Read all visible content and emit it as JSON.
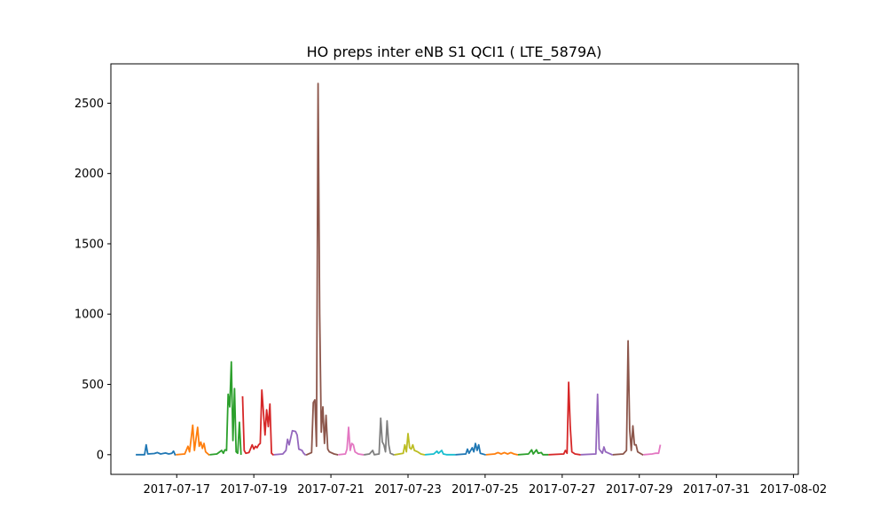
{
  "chart_data": {
    "type": "line",
    "title": "HO preps inter eNB S1 QCI1 ( LTE_5879A)",
    "xlabel": "",
    "ylabel": "",
    "x_ticks": [
      "2017-07-17",
      "2017-07-19",
      "2017-07-21",
      "2017-07-23",
      "2017-07-25",
      "2017-07-27",
      "2017-07-29",
      "2017-07-31",
      "2017-08-02"
    ],
    "y_ticks": [
      0,
      500,
      1000,
      1500,
      2000,
      2500
    ],
    "xlim": [
      "2017-07-15T07:00",
      "2017-08-02T03:00"
    ],
    "ylim": [
      -140,
      2780
    ],
    "grid": false,
    "legend": "none",
    "series": [
      {
        "color": "#1f77b4",
        "points": [
          [
            "2017-07-15T23:00",
            0
          ],
          [
            "2017-07-16T04:00",
            0
          ],
          [
            "2017-07-16T05:00",
            70
          ],
          [
            "2017-07-16T06:00",
            5
          ],
          [
            "2017-07-16T10:00",
            8
          ],
          [
            "2017-07-16T12:00",
            15
          ],
          [
            "2017-07-16T14:00",
            5
          ],
          [
            "2017-07-16T17:00",
            12
          ],
          [
            "2017-07-16T19:00",
            5
          ],
          [
            "2017-07-16T21:00",
            10
          ],
          [
            "2017-07-16T22:00",
            25
          ],
          [
            "2017-07-16T23:00",
            0
          ]
        ]
      },
      {
        "color": "#ff7f0e",
        "points": [
          [
            "2017-07-17T00:00",
            0
          ],
          [
            "2017-07-17T05:00",
            5
          ],
          [
            "2017-07-17T07:00",
            60
          ],
          [
            "2017-07-17T08:00",
            20
          ],
          [
            "2017-07-17T10:00",
            210
          ],
          [
            "2017-07-17T11:00",
            30
          ],
          [
            "2017-07-17T13:00",
            195
          ],
          [
            "2017-07-17T14:00",
            60
          ],
          [
            "2017-07-17T15:00",
            90
          ],
          [
            "2017-07-17T16:00",
            45
          ],
          [
            "2017-07-17T17:00",
            80
          ],
          [
            "2017-07-17T18:00",
            20
          ],
          [
            "2017-07-17T19:00",
            10
          ],
          [
            "2017-07-17T20:00",
            0
          ]
        ]
      },
      {
        "color": "#2ca02c",
        "points": [
          [
            "2017-07-17T21:00",
            0
          ],
          [
            "2017-07-18T01:00",
            5
          ],
          [
            "2017-07-18T04:00",
            30
          ],
          [
            "2017-07-18T05:00",
            10
          ],
          [
            "2017-07-18T06:00",
            35
          ],
          [
            "2017-07-18T07:00",
            30
          ],
          [
            "2017-07-18T08:00",
            430
          ],
          [
            "2017-07-18T09:00",
            340
          ],
          [
            "2017-07-18T10:00",
            660
          ],
          [
            "2017-07-18T11:00",
            100
          ],
          [
            "2017-07-18T12:00",
            470
          ],
          [
            "2017-07-18T13:00",
            20
          ],
          [
            "2017-07-18T14:00",
            10
          ],
          [
            "2017-07-18T15:00",
            230
          ],
          [
            "2017-07-18T16:00",
            5
          ]
        ]
      },
      {
        "color": "#d62728",
        "points": [
          [
            "2017-07-18T17:00",
            410
          ],
          [
            "2017-07-18T18:00",
            30
          ],
          [
            "2017-07-18T19:00",
            10
          ],
          [
            "2017-07-18T21:00",
            15
          ],
          [
            "2017-07-18T23:00",
            70
          ],
          [
            "2017-07-19T00:00",
            40
          ],
          [
            "2017-07-19T01:00",
            60
          ],
          [
            "2017-07-19T02:00",
            50
          ],
          [
            "2017-07-19T03:00",
            70
          ],
          [
            "2017-07-19T04:00",
            80
          ],
          [
            "2017-07-19T05:00",
            460
          ],
          [
            "2017-07-19T06:00",
            300
          ],
          [
            "2017-07-19T07:00",
            140
          ],
          [
            "2017-07-19T08:00",
            320
          ],
          [
            "2017-07-19T09:00",
            200
          ],
          [
            "2017-07-19T10:00",
            360
          ],
          [
            "2017-07-19T11:00",
            10
          ],
          [
            "2017-07-19T12:00",
            0
          ]
        ]
      },
      {
        "color": "#9467bd",
        "points": [
          [
            "2017-07-19T13:00",
            0
          ],
          [
            "2017-07-19T18:00",
            5
          ],
          [
            "2017-07-19T20:00",
            30
          ],
          [
            "2017-07-19T21:00",
            110
          ],
          [
            "2017-07-19T22:00",
            70
          ],
          [
            "2017-07-20T00:00",
            170
          ],
          [
            "2017-07-20T02:00",
            165
          ],
          [
            "2017-07-20T03:00",
            140
          ],
          [
            "2017-07-20T04:00",
            40
          ],
          [
            "2017-07-20T06:00",
            30
          ],
          [
            "2017-07-20T07:00",
            10
          ],
          [
            "2017-07-20T08:00",
            0
          ]
        ]
      },
      {
        "color": "#8c564b",
        "points": [
          [
            "2017-07-20T09:00",
            0
          ],
          [
            "2017-07-20T12:00",
            15
          ],
          [
            "2017-07-20T13:00",
            370
          ],
          [
            "2017-07-20T14:00",
            390
          ],
          [
            "2017-07-20T15:00",
            60
          ],
          [
            "2017-07-20T16:00",
            2640
          ],
          [
            "2017-07-20T17:00",
            1000
          ],
          [
            "2017-07-20T18:00",
            160
          ],
          [
            "2017-07-20T19:00",
            340
          ],
          [
            "2017-07-20T20:00",
            80
          ],
          [
            "2017-07-20T21:00",
            280
          ],
          [
            "2017-07-20T22:00",
            40
          ],
          [
            "2017-07-20T23:00",
            20
          ],
          [
            "2017-07-21T02:00",
            5
          ],
          [
            "2017-07-21T04:00",
            0
          ]
        ]
      },
      {
        "color": "#e377c2",
        "points": [
          [
            "2017-07-21T05:00",
            0
          ],
          [
            "2017-07-21T09:00",
            5
          ],
          [
            "2017-07-21T10:00",
            40
          ],
          [
            "2017-07-21T11:00",
            195
          ],
          [
            "2017-07-21T12:00",
            30
          ],
          [
            "2017-07-21T13:00",
            80
          ],
          [
            "2017-07-21T14:00",
            70
          ],
          [
            "2017-07-21T15:00",
            20
          ],
          [
            "2017-07-21T17:00",
            5
          ],
          [
            "2017-07-21T20:00",
            0
          ]
        ]
      },
      {
        "color": "#7f7f7f",
        "points": [
          [
            "2017-07-21T21:00",
            0
          ],
          [
            "2017-07-22T00:00",
            5
          ],
          [
            "2017-07-22T02:00",
            30
          ],
          [
            "2017-07-22T03:00",
            0
          ],
          [
            "2017-07-22T06:00",
            5
          ],
          [
            "2017-07-22T07:00",
            260
          ],
          [
            "2017-07-22T08:00",
            90
          ],
          [
            "2017-07-22T09:00",
            70
          ],
          [
            "2017-07-22T10:00",
            20
          ],
          [
            "2017-07-22T11:00",
            240
          ],
          [
            "2017-07-22T12:00",
            70
          ],
          [
            "2017-07-22T13:00",
            10
          ],
          [
            "2017-07-22T15:00",
            0
          ]
        ]
      },
      {
        "color": "#bcbd22",
        "points": [
          [
            "2017-07-22T16:00",
            0
          ],
          [
            "2017-07-22T21:00",
            10
          ],
          [
            "2017-07-22T22:00",
            70
          ],
          [
            "2017-07-22T23:00",
            20
          ],
          [
            "2017-07-23T00:00",
            150
          ],
          [
            "2017-07-23T01:00",
            50
          ],
          [
            "2017-07-23T02:00",
            40
          ],
          [
            "2017-07-23T03:00",
            70
          ],
          [
            "2017-07-23T04:00",
            30
          ],
          [
            "2017-07-23T06:00",
            20
          ],
          [
            "2017-07-23T08:00",
            5
          ],
          [
            "2017-07-23T10:00",
            0
          ]
        ]
      },
      {
        "color": "#17becf",
        "points": [
          [
            "2017-07-23T11:00",
            0
          ],
          [
            "2017-07-23T16:00",
            5
          ],
          [
            "2017-07-23T18:00",
            25
          ],
          [
            "2017-07-23T19:00",
            10
          ],
          [
            "2017-07-23T21:00",
            30
          ],
          [
            "2017-07-23T22:00",
            5
          ],
          [
            "2017-07-24T00:00",
            0
          ],
          [
            "2017-07-24T05:00",
            0
          ]
        ]
      },
      {
        "color": "#1f77b4",
        "points": [
          [
            "2017-07-24T06:00",
            0
          ],
          [
            "2017-07-24T12:00",
            5
          ],
          [
            "2017-07-24T13:00",
            40
          ],
          [
            "2017-07-24T14:00",
            10
          ],
          [
            "2017-07-24T16:00",
            50
          ],
          [
            "2017-07-24T17:00",
            20
          ],
          [
            "2017-07-24T18:00",
            80
          ],
          [
            "2017-07-24T19:00",
            30
          ],
          [
            "2017-07-24T20:00",
            70
          ],
          [
            "2017-07-24T21:00",
            10
          ],
          [
            "2017-07-25T00:00",
            0
          ]
        ]
      },
      {
        "color": "#ff7f0e",
        "points": [
          [
            "2017-07-25T01:00",
            0
          ],
          [
            "2017-07-25T06:00",
            5
          ],
          [
            "2017-07-25T08:00",
            15
          ],
          [
            "2017-07-25T10:00",
            5
          ],
          [
            "2017-07-25T12:00",
            15
          ],
          [
            "2017-07-25T14:00",
            5
          ],
          [
            "2017-07-25T16:00",
            15
          ],
          [
            "2017-07-25T18:00",
            5
          ],
          [
            "2017-07-25T20:00",
            0
          ]
        ]
      },
      {
        "color": "#2ca02c",
        "points": [
          [
            "2017-07-25T21:00",
            0
          ],
          [
            "2017-07-26T03:00",
            5
          ],
          [
            "2017-07-26T05:00",
            35
          ],
          [
            "2017-07-26T06:00",
            5
          ],
          [
            "2017-07-26T08:00",
            35
          ],
          [
            "2017-07-26T09:00",
            10
          ],
          [
            "2017-07-26T11:00",
            15
          ],
          [
            "2017-07-26T12:00",
            0
          ],
          [
            "2017-07-26T15:00",
            0
          ]
        ]
      },
      {
        "color": "#d62728",
        "points": [
          [
            "2017-07-26T16:00",
            0
          ],
          [
            "2017-07-27T01:00",
            5
          ],
          [
            "2017-07-27T02:00",
            30
          ],
          [
            "2017-07-27T03:00",
            10
          ],
          [
            "2017-07-27T04:00",
            515
          ],
          [
            "2017-07-27T05:00",
            200
          ],
          [
            "2017-07-27T06:00",
            20
          ],
          [
            "2017-07-27T08:00",
            5
          ],
          [
            "2017-07-27T11:00",
            0
          ]
        ]
      },
      {
        "color": "#9467bd",
        "points": [
          [
            "2017-07-27T12:00",
            0
          ],
          [
            "2017-07-27T21:00",
            5
          ],
          [
            "2017-07-27T22:00",
            430
          ],
          [
            "2017-07-27T23:00",
            40
          ],
          [
            "2017-07-28T01:00",
            10
          ],
          [
            "2017-07-28T02:00",
            55
          ],
          [
            "2017-07-28T03:00",
            20
          ],
          [
            "2017-07-28T05:00",
            10
          ],
          [
            "2017-07-28T07:00",
            0
          ]
        ]
      },
      {
        "color": "#8c564b",
        "points": [
          [
            "2017-07-28T08:00",
            0
          ],
          [
            "2017-07-28T14:00",
            5
          ],
          [
            "2017-07-28T16:00",
            30
          ],
          [
            "2017-07-28T17:00",
            810
          ],
          [
            "2017-07-28T18:00",
            180
          ],
          [
            "2017-07-28T19:00",
            30
          ],
          [
            "2017-07-28T20:00",
            205
          ],
          [
            "2017-07-28T21:00",
            70
          ],
          [
            "2017-07-28T22:00",
            70
          ],
          [
            "2017-07-28T23:00",
            20
          ],
          [
            "2017-07-29T02:00",
            0
          ]
        ]
      },
      {
        "color": "#e377c2",
        "points": [
          [
            "2017-07-29T03:00",
            0
          ],
          [
            "2017-07-29T08:00",
            5
          ],
          [
            "2017-07-29T10:00",
            10
          ],
          [
            "2017-07-29T12:00",
            10
          ],
          [
            "2017-07-29T13:00",
            65
          ]
        ]
      }
    ]
  }
}
